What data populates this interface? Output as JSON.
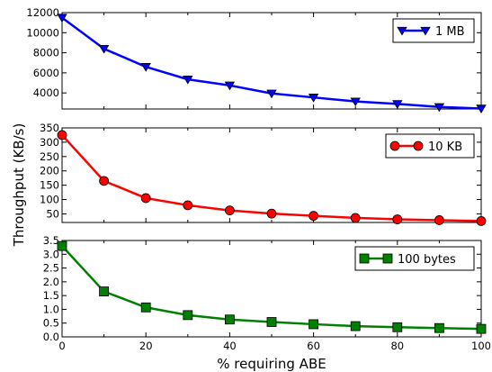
{
  "figure": {
    "ylabel": "Throughput (KB/s)",
    "xlabel": "% requiring ABE"
  },
  "chart_data": [
    {
      "type": "line",
      "x": [
        0,
        10,
        20,
        30,
        40,
        50,
        60,
        70,
        80,
        90,
        100
      ],
      "series": [
        {
          "name": "1 MB",
          "color": "#0000ff",
          "marker": "triangle-down",
          "values": [
            11500,
            8400,
            6600,
            5350,
            4750,
            3950,
            3550,
            3150,
            2900,
            2600,
            2450
          ]
        }
      ],
      "xlim": [
        0,
        100
      ],
      "ylim": [
        2400,
        12000
      ],
      "yticks": [
        4000,
        6000,
        8000,
        10000,
        12000
      ],
      "legend": "top-right"
    },
    {
      "type": "line",
      "x": [
        0,
        10,
        20,
        30,
        40,
        50,
        60,
        70,
        80,
        90,
        100
      ],
      "series": [
        {
          "name": "10 KB",
          "color": "#ff0000",
          "marker": "circle",
          "values": [
            325,
            165,
            105,
            80,
            62,
            51,
            43,
            36,
            31,
            28,
            25
          ]
        }
      ],
      "xlim": [
        0,
        100
      ],
      "ylim": [
        20,
        350
      ],
      "yticks": [
        50,
        100,
        150,
        200,
        250,
        300,
        350
      ],
      "legend": "top-right"
    },
    {
      "type": "line",
      "x": [
        0,
        10,
        20,
        30,
        40,
        50,
        60,
        70,
        80,
        90,
        100
      ],
      "series": [
        {
          "name": "100 bytes",
          "color": "#008000",
          "marker": "square",
          "values": [
            3.3,
            1.65,
            1.07,
            0.79,
            0.63,
            0.54,
            0.46,
            0.39,
            0.35,
            0.32,
            0.29
          ]
        }
      ],
      "xlim": [
        0,
        100
      ],
      "ylim": [
        0,
        3.5
      ],
      "yticks": [
        0.0,
        0.5,
        1.0,
        1.5,
        2.0,
        2.5,
        3.0,
        3.5
      ],
      "xticks": [
        0,
        20,
        40,
        60,
        80,
        100
      ],
      "legend": "top-right"
    }
  ]
}
